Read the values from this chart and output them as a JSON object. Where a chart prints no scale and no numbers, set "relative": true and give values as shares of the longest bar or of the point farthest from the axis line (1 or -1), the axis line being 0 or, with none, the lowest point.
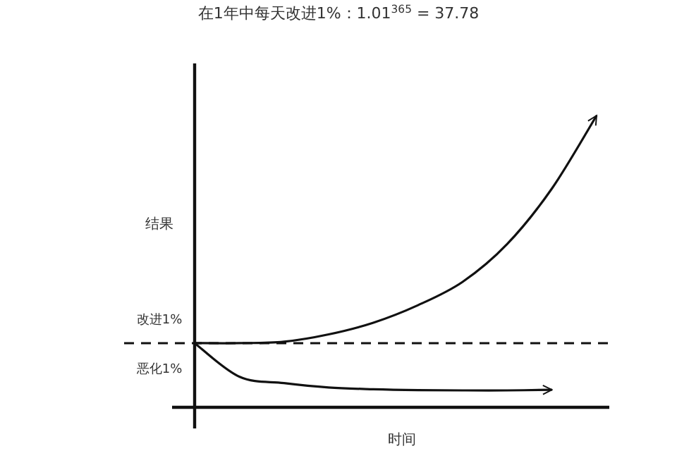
{
  "chart_data": {
    "type": "line",
    "relative": true,
    "title": "在1年中每天改进1%：1.01$^{365}$ = 37.78",
    "xlabel": "时间",
    "ylabel": "结果",
    "categories": [
      null,
      null,
      null,
      null,
      null,
      null,
      null,
      null,
      null,
      null
    ],
    "series": [
      {
        "name": "改进1%",
        "color": "#111111",
        "values": [
          0.22,
          0.22,
          0.225,
          0.25,
          0.29,
          0.35,
          0.43,
          0.56,
          0.75,
          1
        ]
      },
      {
        "name": "恶化1%",
        "color": "#111111",
        "values": [
          0.22,
          0.105,
          0.083,
          0.068,
          0.062,
          0.059,
          0.058,
          0.058,
          0.06,
          null
        ]
      }
    ],
    "ref_lines": [
      {
        "axis": "y",
        "value": 0.22,
        "line_style": "dashed",
        "color": "#111111"
      }
    ]
  }
}
